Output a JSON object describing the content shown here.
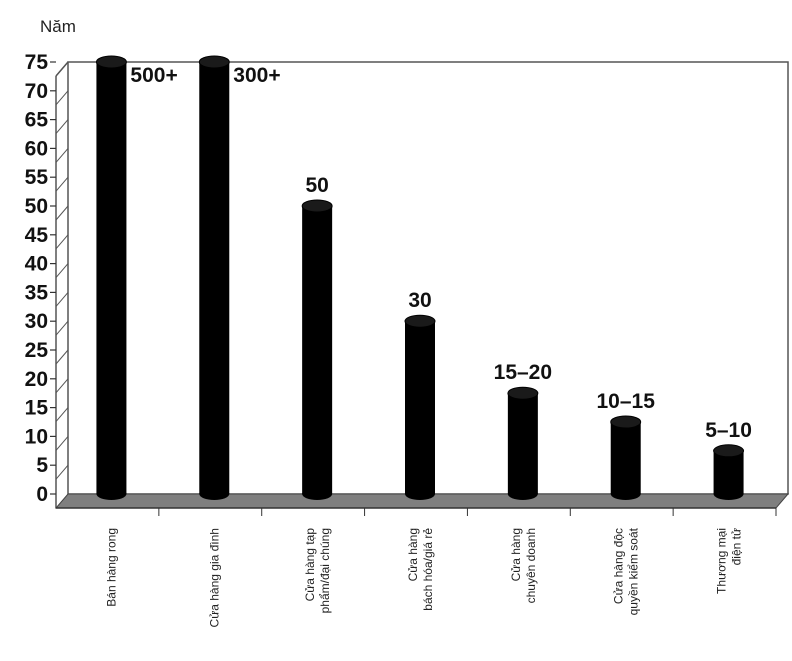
{
  "chart_data": {
    "type": "bar",
    "ylabel": "Năm",
    "ylim": [
      0,
      75
    ],
    "ytick_step": 5,
    "grid": true,
    "bar_color": "#000000",
    "floor_color": "#7f7f7f",
    "categories": [
      [
        "Bán hàng rong"
      ],
      [
        "Cửa hàng gia đình"
      ],
      [
        "Cửa hàng tạp",
        "phẩm/đại chúng"
      ],
      [
        "Cửa hàng",
        "bách hóa/giá rẻ"
      ],
      [
        "Cửa hàng",
        "chuyên doanh"
      ],
      [
        "Cửa hàng độc",
        "quyền kiểm soát"
      ],
      [
        "Thương mại",
        "điện tử"
      ]
    ],
    "values": [
      500,
      300,
      50,
      30,
      17.5,
      12.5,
      7.5
    ],
    "data_labels": [
      "500+",
      "300+",
      "50",
      "30",
      "15–20",
      "10–15",
      "5–10"
    ]
  }
}
